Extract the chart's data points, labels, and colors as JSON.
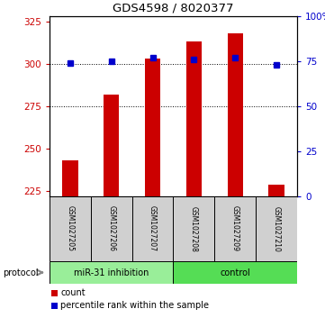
{
  "title": "GDS4598 / 8020377",
  "samples": [
    "GSM1027205",
    "GSM1027206",
    "GSM1027207",
    "GSM1027208",
    "GSM1027209",
    "GSM1027210"
  ],
  "counts": [
    243,
    282,
    303,
    313,
    318,
    229
  ],
  "percentiles": [
    74,
    75,
    77,
    76,
    77,
    73
  ],
  "ylim_left": [
    222,
    328
  ],
  "ylim_right": [
    0,
    100
  ],
  "yticks_left": [
    225,
    250,
    275,
    300,
    325
  ],
  "yticks_right": [
    0,
    25,
    50,
    75,
    100
  ],
  "ytick_right_labels": [
    "0",
    "25",
    "50",
    "75",
    "100%"
  ],
  "grid_vals": [
    275,
    300
  ],
  "bar_color": "#cc0000",
  "dot_color": "#0000cc",
  "bar_bottom": 222,
  "group1_label": "miR-31 inhibition",
  "group2_label": "control",
  "group1_color": "#99ee99",
  "group2_color": "#55dd55",
  "sample_box_color": "#d0d0d0",
  "protocol_label": "protocol",
  "legend_bar_color": "#cc0000",
  "legend_dot_color": "#0000cc",
  "figsize": [
    3.61,
    3.63
  ],
  "dpi": 100
}
